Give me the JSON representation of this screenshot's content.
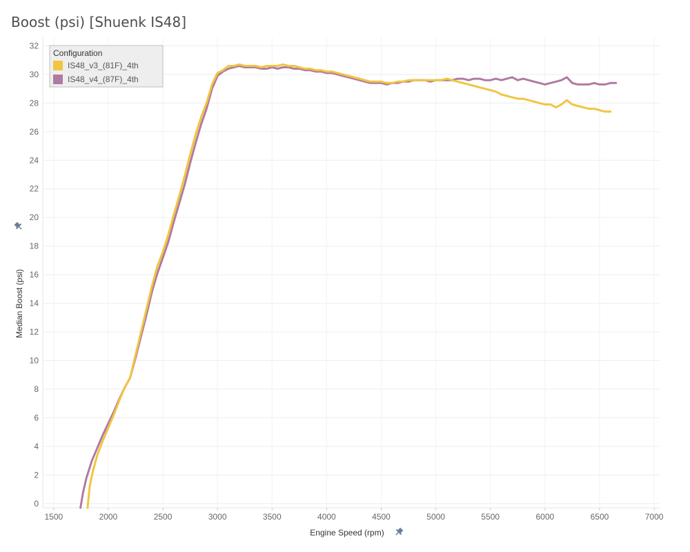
{
  "chart_data": {
    "type": "line",
    "title": "Boost (psi) [Shuenk IS48]",
    "xlabel": "Engine Speed (rpm)",
    "ylabel": "Median Boost (psi)",
    "xlim": [
      1400,
      7050
    ],
    "ylim": [
      -0.3,
      32.6
    ],
    "xticks": [
      1500,
      2000,
      2500,
      3000,
      3500,
      4000,
      4500,
      5000,
      5500,
      6000,
      6500,
      7000
    ],
    "yticks": [
      0,
      2,
      4,
      6,
      8,
      10,
      12,
      14,
      16,
      18,
      20,
      22,
      24,
      26,
      28,
      30,
      32
    ],
    "grid": true,
    "legend": {
      "title": "Configuration",
      "placement": "top-left"
    },
    "series": [
      {
        "name": "IS48_v3_(81F)_4th",
        "color": "#f0c541",
        "points": [
          [
            1810,
            -0.3
          ],
          [
            1830,
            1.2
          ],
          [
            1860,
            2.3
          ],
          [
            1900,
            3.4
          ],
          [
            1950,
            4.4
          ],
          [
            2000,
            5.3
          ],
          [
            2050,
            6.2
          ],
          [
            2100,
            7.2
          ],
          [
            2150,
            8.1
          ],
          [
            2200,
            8.8
          ],
          [
            2250,
            10.4
          ],
          [
            2300,
            12.0
          ],
          [
            2350,
            13.6
          ],
          [
            2400,
            15.2
          ],
          [
            2450,
            16.6
          ],
          [
            2500,
            17.6
          ],
          [
            2550,
            18.8
          ],
          [
            2600,
            20.2
          ],
          [
            2650,
            21.5
          ],
          [
            2700,
            22.9
          ],
          [
            2750,
            24.4
          ],
          [
            2800,
            25.8
          ],
          [
            2850,
            27.0
          ],
          [
            2900,
            28.0
          ],
          [
            2950,
            29.3
          ],
          [
            3000,
            30.1
          ],
          [
            3050,
            30.3
          ],
          [
            3100,
            30.6
          ],
          [
            3150,
            30.6
          ],
          [
            3200,
            30.7
          ],
          [
            3250,
            30.6
          ],
          [
            3300,
            30.6
          ],
          [
            3350,
            30.6
          ],
          [
            3400,
            30.5
          ],
          [
            3450,
            30.6
          ],
          [
            3500,
            30.6
          ],
          [
            3550,
            30.6
          ],
          [
            3600,
            30.7
          ],
          [
            3650,
            30.6
          ],
          [
            3700,
            30.6
          ],
          [
            3750,
            30.5
          ],
          [
            3800,
            30.4
          ],
          [
            3850,
            30.4
          ],
          [
            3900,
            30.3
          ],
          [
            3950,
            30.3
          ],
          [
            4000,
            30.2
          ],
          [
            4050,
            30.2
          ],
          [
            4100,
            30.1
          ],
          [
            4150,
            30.0
          ],
          [
            4200,
            29.9
          ],
          [
            4250,
            29.8
          ],
          [
            4300,
            29.7
          ],
          [
            4350,
            29.6
          ],
          [
            4400,
            29.5
          ],
          [
            4450,
            29.5
          ],
          [
            4500,
            29.5
          ],
          [
            4550,
            29.4
          ],
          [
            4600,
            29.4
          ],
          [
            4650,
            29.5
          ],
          [
            4700,
            29.5
          ],
          [
            4750,
            29.6
          ],
          [
            4800,
            29.6
          ],
          [
            4850,
            29.6
          ],
          [
            4900,
            29.6
          ],
          [
            4950,
            29.6
          ],
          [
            5000,
            29.6
          ],
          [
            5050,
            29.6
          ],
          [
            5100,
            29.7
          ],
          [
            5150,
            29.6
          ],
          [
            5200,
            29.5
          ],
          [
            5250,
            29.4
          ],
          [
            5300,
            29.3
          ],
          [
            5350,
            29.2
          ],
          [
            5400,
            29.1
          ],
          [
            5450,
            29.0
          ],
          [
            5500,
            28.9
          ],
          [
            5550,
            28.8
          ],
          [
            5600,
            28.6
          ],
          [
            5650,
            28.5
          ],
          [
            5700,
            28.4
          ],
          [
            5750,
            28.3
          ],
          [
            5800,
            28.3
          ],
          [
            5850,
            28.2
          ],
          [
            5900,
            28.1
          ],
          [
            5950,
            28.0
          ],
          [
            6000,
            27.9
          ],
          [
            6050,
            27.9
          ],
          [
            6100,
            27.7
          ],
          [
            6150,
            27.9
          ],
          [
            6200,
            28.2
          ],
          [
            6250,
            27.9
          ],
          [
            6300,
            27.8
          ],
          [
            6350,
            27.7
          ],
          [
            6400,
            27.6
          ],
          [
            6450,
            27.6
          ],
          [
            6500,
            27.5
          ],
          [
            6550,
            27.4
          ],
          [
            6600,
            27.4
          ]
        ]
      },
      {
        "name": "IS48_v4_(87F)_4th",
        "color": "#b07aa1",
        "points": [
          [
            1745,
            -0.3
          ],
          [
            1770,
            0.8
          ],
          [
            1800,
            1.8
          ],
          [
            1850,
            3.0
          ],
          [
            1900,
            3.9
          ],
          [
            1950,
            4.8
          ],
          [
            2000,
            5.6
          ],
          [
            2050,
            6.4
          ],
          [
            2100,
            7.3
          ],
          [
            2150,
            8.1
          ],
          [
            2200,
            8.8
          ],
          [
            2250,
            10.2
          ],
          [
            2300,
            11.7
          ],
          [
            2350,
            13.2
          ],
          [
            2400,
            14.8
          ],
          [
            2450,
            16.1
          ],
          [
            2500,
            17.2
          ],
          [
            2550,
            18.3
          ],
          [
            2600,
            19.7
          ],
          [
            2650,
            21.0
          ],
          [
            2700,
            22.3
          ],
          [
            2750,
            23.8
          ],
          [
            2800,
            25.2
          ],
          [
            2850,
            26.5
          ],
          [
            2900,
            27.6
          ],
          [
            2950,
            29.0
          ],
          [
            3000,
            29.9
          ],
          [
            3050,
            30.2
          ],
          [
            3100,
            30.4
          ],
          [
            3150,
            30.5
          ],
          [
            3200,
            30.6
          ],
          [
            3250,
            30.5
          ],
          [
            3300,
            30.5
          ],
          [
            3350,
            30.5
          ],
          [
            3400,
            30.4
          ],
          [
            3450,
            30.4
          ],
          [
            3500,
            30.5
          ],
          [
            3550,
            30.4
          ],
          [
            3600,
            30.5
          ],
          [
            3650,
            30.5
          ],
          [
            3700,
            30.4
          ],
          [
            3750,
            30.4
          ],
          [
            3800,
            30.3
          ],
          [
            3850,
            30.3
          ],
          [
            3900,
            30.2
          ],
          [
            3950,
            30.2
          ],
          [
            4000,
            30.1
          ],
          [
            4050,
            30.1
          ],
          [
            4100,
            30.0
          ],
          [
            4150,
            29.9
          ],
          [
            4200,
            29.8
          ],
          [
            4250,
            29.7
          ],
          [
            4300,
            29.6
          ],
          [
            4350,
            29.5
          ],
          [
            4400,
            29.4
          ],
          [
            4450,
            29.4
          ],
          [
            4500,
            29.4
          ],
          [
            4550,
            29.3
          ],
          [
            4600,
            29.4
          ],
          [
            4650,
            29.4
          ],
          [
            4700,
            29.5
          ],
          [
            4750,
            29.5
          ],
          [
            4800,
            29.6
          ],
          [
            4850,
            29.6
          ],
          [
            4900,
            29.6
          ],
          [
            4950,
            29.5
          ],
          [
            5000,
            29.6
          ],
          [
            5050,
            29.6
          ],
          [
            5100,
            29.6
          ],
          [
            5150,
            29.6
          ],
          [
            5200,
            29.7
          ],
          [
            5250,
            29.7
          ],
          [
            5300,
            29.6
          ],
          [
            5350,
            29.7
          ],
          [
            5400,
            29.7
          ],
          [
            5450,
            29.6
          ],
          [
            5500,
            29.6
          ],
          [
            5550,
            29.7
          ],
          [
            5600,
            29.6
          ],
          [
            5650,
            29.7
          ],
          [
            5700,
            29.8
          ],
          [
            5750,
            29.6
          ],
          [
            5800,
            29.7
          ],
          [
            5850,
            29.6
          ],
          [
            5900,
            29.5
          ],
          [
            5950,
            29.4
          ],
          [
            6000,
            29.3
          ],
          [
            6050,
            29.4
          ],
          [
            6100,
            29.5
          ],
          [
            6150,
            29.6
          ],
          [
            6200,
            29.8
          ],
          [
            6250,
            29.4
          ],
          [
            6300,
            29.3
          ],
          [
            6350,
            29.3
          ],
          [
            6400,
            29.3
          ],
          [
            6450,
            29.4
          ],
          [
            6500,
            29.3
          ],
          [
            6550,
            29.3
          ],
          [
            6600,
            29.4
          ],
          [
            6650,
            29.4
          ]
        ]
      }
    ]
  }
}
